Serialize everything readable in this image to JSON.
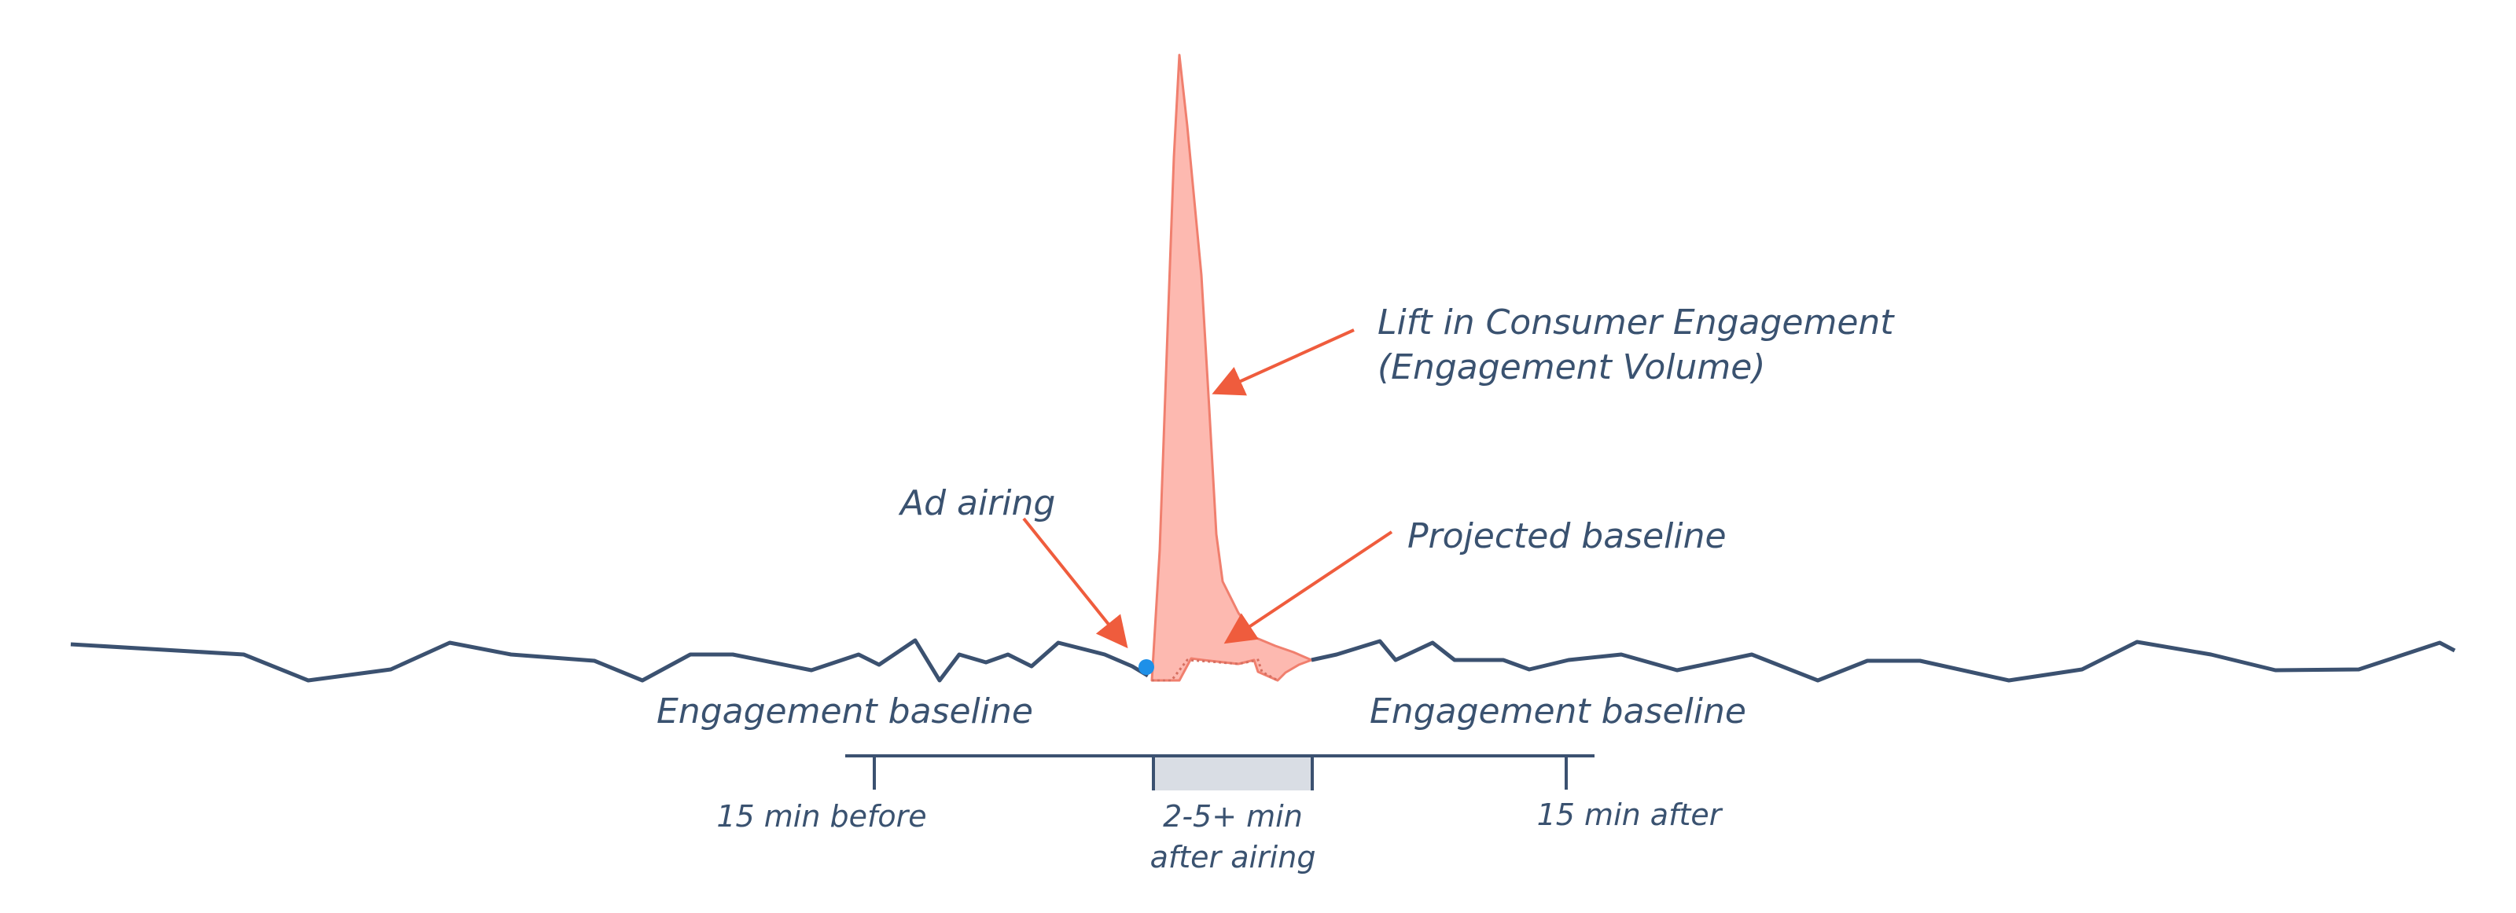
{
  "annotations": {
    "lift_line1": "Lift in Consumer Engagement",
    "lift_line2": "(Engagement Volume)",
    "projected_baseline": "Projected baseline",
    "ad_airing": "Ad airing",
    "baseline_left": "Engagement baseline",
    "baseline_right": "Engagement baseline"
  },
  "timeline": {
    "before": "15 min before",
    "window_line1": "2-5+ min",
    "window_line2": "after airing",
    "after": "15 min after"
  },
  "colors": {
    "baseline_line": "#3b5170",
    "lift_fill": "#fdb9b0",
    "lift_stroke": "#f07f6e",
    "arrow": "#ef5c3d",
    "ad_dot": "#1e90e8",
    "window_fill": "#d9dde4",
    "text": "#3a5270"
  }
}
